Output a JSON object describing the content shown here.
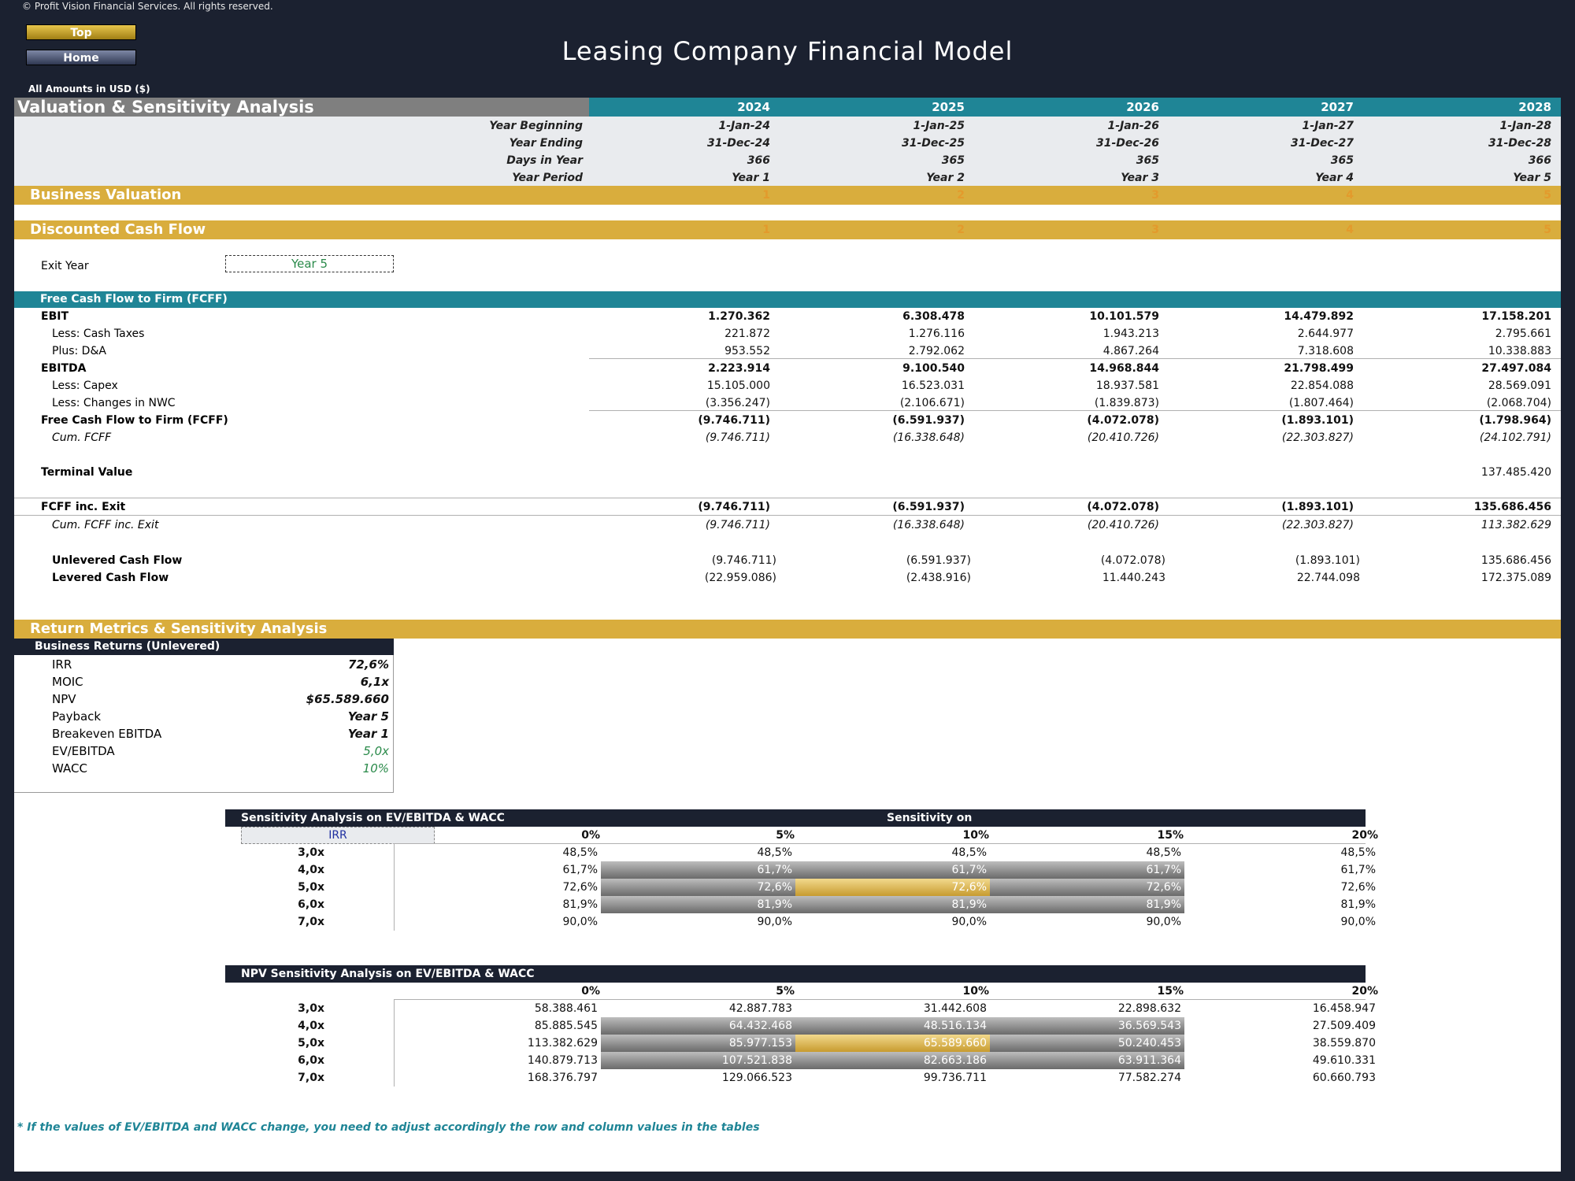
{
  "copyright": "© Profit Vision Financial Services. All rights reserved.",
  "nav": {
    "top": "Top",
    "home": "Home"
  },
  "title": "Leasing Company Financial Model",
  "amounts_note": "All Amounts in  USD ($)",
  "section_title": "Valuation & Sensitivity Analysis",
  "years": [
    "2024",
    "2025",
    "2026",
    "2027",
    "2028"
  ],
  "info_rows": [
    {
      "label": "Year Beginning",
      "values": [
        "1-Jan-24",
        "1-Jan-25",
        "1-Jan-26",
        "1-Jan-27",
        "1-Jan-28"
      ]
    },
    {
      "label": "Year Ending",
      "values": [
        "31-Dec-24",
        "31-Dec-25",
        "31-Dec-26",
        "31-Dec-27",
        "31-Dec-28"
      ]
    },
    {
      "label": "Days in Year",
      "values": [
        "366",
        "365",
        "365",
        "365",
        "366"
      ]
    },
    {
      "label": "Year Period",
      "values": [
        "Year 1",
        "Year 2",
        "Year 3",
        "Year 4",
        "Year 5"
      ]
    }
  ],
  "business_valuation": {
    "title": "Business Valuation",
    "ghost": [
      "1",
      "2",
      "3",
      "4",
      "5"
    ]
  },
  "dcf": {
    "title": "Discounted Cash Flow",
    "ghost": [
      "1",
      "2",
      "3",
      "4",
      "5"
    ]
  },
  "exit_year": {
    "label": "Exit Year",
    "value": "Year 5"
  },
  "fcff_title": "Free Cash Flow to Firm (FCFF)",
  "fcff_rows": [
    {
      "label": "EBIT",
      "values": [
        "1.270.362",
        "6.308.478",
        "10.101.579",
        "14.479.892",
        "17.158.201"
      ]
    },
    {
      "label": "Less: Cash Taxes",
      "values": [
        "221.872",
        "1.276.116",
        "1.943.213",
        "2.644.977",
        "2.795.661"
      ]
    },
    {
      "label": "Plus: D&A",
      "values": [
        "953.552",
        "2.792.062",
        "4.867.264",
        "7.318.608",
        "10.338.883"
      ]
    },
    {
      "label": "EBITDA",
      "values": [
        "2.223.914",
        "9.100.540",
        "14.968.844",
        "21.798.499",
        "27.497.084"
      ]
    },
    {
      "label": "Less: Capex",
      "values": [
        "15.105.000",
        "16.523.031",
        "18.937.581",
        "22.854.088",
        "28.569.091"
      ]
    },
    {
      "label": "Less: Changes in NWC",
      "values": [
        "(3.356.247)",
        "(2.106.671)",
        "(1.839.873)",
        "(1.807.464)",
        "(2.068.704)"
      ]
    },
    {
      "label": "Free Cash Flow to Firm (FCFF)",
      "values": [
        "(9.746.711)",
        "(6.591.937)",
        "(4.072.078)",
        "(1.893.101)",
        "(1.798.964)"
      ]
    },
    {
      "label": "Cum. FCFF",
      "values": [
        "(9.746.711)",
        "(16.338.648)",
        "(20.410.726)",
        "(22.303.827)",
        "(24.102.791)"
      ]
    }
  ],
  "terminal_value": {
    "label": "Terminal Value",
    "value": "137.485.420"
  },
  "fcff_exit": {
    "label": "FCFF inc. Exit",
    "values": [
      "(9.746.711)",
      "(6.591.937)",
      "(4.072.078)",
      "(1.893.101)",
      "135.686.456"
    ]
  },
  "cum_fcff_exit": {
    "label": "Cum. FCFF inc. Exit",
    "values": [
      "(9.746.711)",
      "(16.338.648)",
      "(20.410.726)",
      "(22.303.827)",
      "113.382.629"
    ]
  },
  "unlevered": {
    "label": "Unlevered Cash Flow",
    "values": [
      "(9.746.711)",
      "(6.591.937)",
      "(4.072.078)",
      "(1.893.101)",
      "135.686.456"
    ]
  },
  "levered": {
    "label": "Levered Cash Flow",
    "values": [
      "(22.959.086)",
      "(2.438.916)",
      "11.440.243",
      "22.744.098",
      "172.375.089"
    ]
  },
  "return_metrics_title": "Return Metrics & Sensitivity Analysis",
  "business_returns": {
    "title": "Business Returns (Unlevered)",
    "rows": [
      {
        "label": "IRR",
        "value": "72,6%"
      },
      {
        "label": "MOIC",
        "value": "6,1x"
      },
      {
        "label": "NPV",
        "value": "$65.589.660"
      },
      {
        "label": "Payback",
        "value": "Year 5"
      },
      {
        "label": "Breakeven EBITDA",
        "value": "Year 1"
      },
      {
        "label": "EV/EBITDA",
        "value": "5,0x"
      },
      {
        "label": "WACC",
        "value": "10%"
      }
    ]
  },
  "sens1": {
    "title": "Sensitivity Analysis on EV/EBITDA & WACC",
    "sens_on_label": "Sensitivity on",
    "sens_on_value": "IRR",
    "cols": [
      "0%",
      "5%",
      "10%",
      "15%",
      "20%"
    ],
    "rows": [
      {
        "label": "3,0x",
        "values": [
          "48,5%",
          "48,5%",
          "48,5%",
          "48,5%",
          "48,5%"
        ]
      },
      {
        "label": "4,0x",
        "values": [
          "61,7%",
          "61,7%",
          "61,7%",
          "61,7%",
          "61,7%"
        ]
      },
      {
        "label": "5,0x",
        "values": [
          "72,6%",
          "72,6%",
          "72,6%",
          "72,6%",
          "72,6%"
        ]
      },
      {
        "label": "6,0x",
        "values": [
          "81,9%",
          "81,9%",
          "81,9%",
          "81,9%",
          "81,9%"
        ]
      },
      {
        "label": "7,0x",
        "values": [
          "90,0%",
          "90,0%",
          "90,0%",
          "90,0%",
          "90,0%"
        ]
      }
    ]
  },
  "sens2": {
    "title": "NPV Sensitivity Analysis on EV/EBITDA & WACC",
    "cols": [
      "0%",
      "5%",
      "10%",
      "15%",
      "20%"
    ],
    "rows": [
      {
        "label": "3,0x",
        "values": [
          "58.388.461",
          "42.887.783",
          "31.442.608",
          "22.898.632",
          "16.458.947"
        ]
      },
      {
        "label": "4,0x",
        "values": [
          "85.885.545",
          "64.432.468",
          "48.516.134",
          "36.569.543",
          "27.509.409"
        ]
      },
      {
        "label": "5,0x",
        "values": [
          "113.382.629",
          "85.977.153",
          "65.589.660",
          "50.240.453",
          "38.559.870"
        ]
      },
      {
        "label": "6,0x",
        "values": [
          "140.879.713",
          "107.521.838",
          "82.663.186",
          "63.911.364",
          "49.610.331"
        ]
      },
      {
        "label": "7,0x",
        "values": [
          "168.376.797",
          "129.066.523",
          "99.736.711",
          "77.582.274",
          "60.660.793"
        ]
      }
    ]
  },
  "footnote": "* If the values of EV/EBITDA and WACC change, you need to adjust accordingly the row and column values in the tables"
}
